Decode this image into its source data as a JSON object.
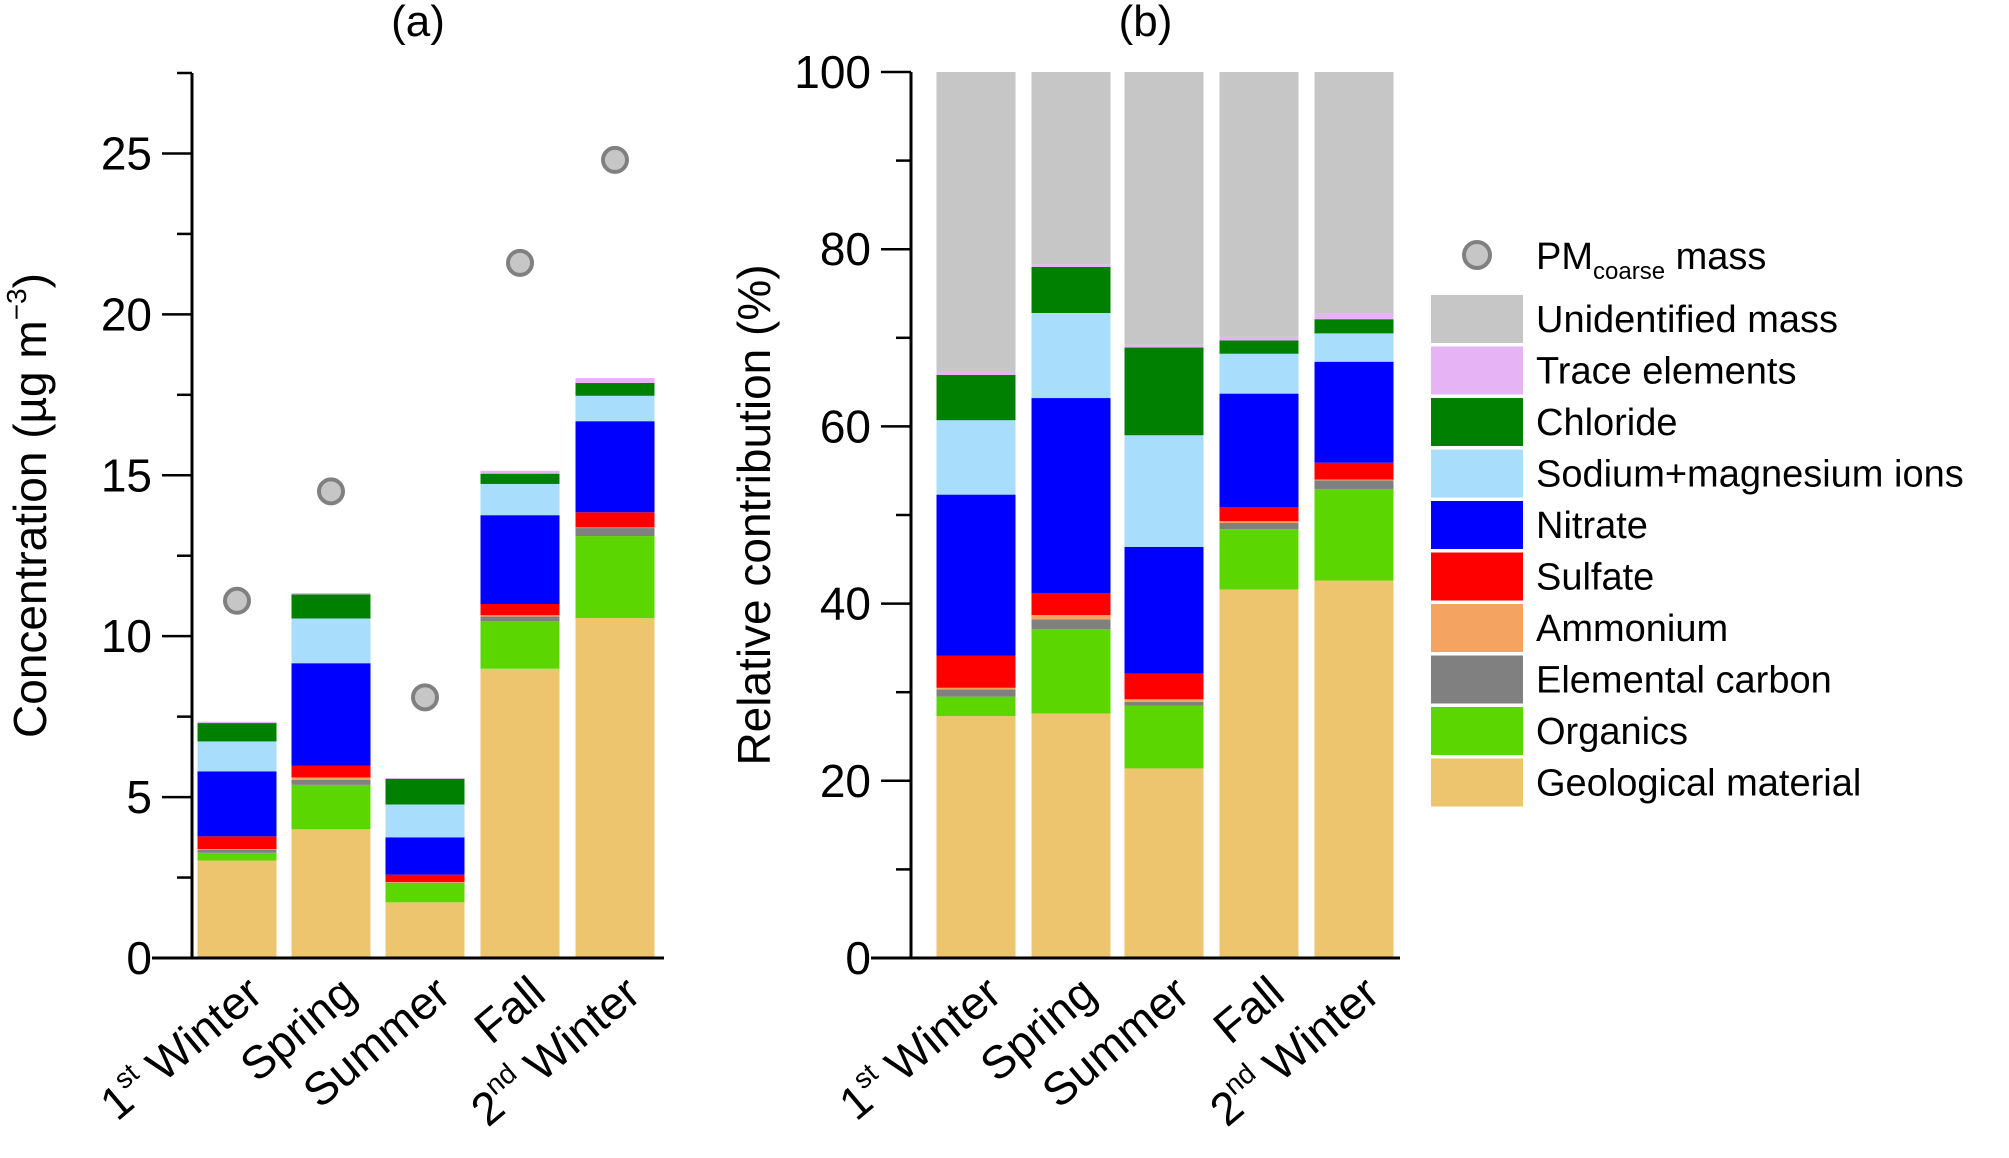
{
  "chart_data": [
    {
      "type": "bar",
      "stacked": true,
      "title": "(a)",
      "ylabel": "Concentration (µg m⁻³)",
      "ylabel_parts": {
        "main": "Concentration (µg m",
        "sup": "−3",
        "end": ")"
      },
      "ylim": [
        0,
        27.5
      ],
      "yticks": [
        0,
        5,
        10,
        15,
        20,
        25
      ],
      "categories": [
        {
          "base": "1",
          "sup": "st",
          "rest": " Winter"
        },
        {
          "base": "Spring",
          "sup": "",
          "rest": ""
        },
        {
          "base": "Summer",
          "sup": "",
          "rest": ""
        },
        {
          "base": "Fall",
          "sup": "",
          "rest": ""
        },
        {
          "base": "2",
          "sup": "nd",
          "rest": " Winter"
        }
      ],
      "series": [
        {
          "name": "Geological material",
          "color": "#EDC56F",
          "values": [
            3.03,
            4.0,
            1.73,
            8.99,
            10.56
          ]
        },
        {
          "name": "Organics",
          "color": "#5CD600",
          "values": [
            0.24,
            1.38,
            0.58,
            1.47,
            2.55
          ]
        },
        {
          "name": "Elemental carbon",
          "color": "#808080",
          "values": [
            0.09,
            0.16,
            0.03,
            0.15,
            0.25
          ]
        },
        {
          "name": "Ammonium",
          "color": "#F4A460",
          "values": [
            0.02,
            0.07,
            0.02,
            0.04,
            0.02
          ]
        },
        {
          "name": "Sulfate",
          "color": "#FF0000",
          "values": [
            0.4,
            0.36,
            0.23,
            0.35,
            0.47
          ]
        },
        {
          "name": "Nitrate",
          "color": "#0000FF",
          "values": [
            2.02,
            3.19,
            1.16,
            2.76,
            2.83
          ]
        },
        {
          "name": "Sodium+magnesium ions",
          "color": "#A8DDFC",
          "values": [
            0.93,
            1.39,
            1.02,
            0.97,
            0.79
          ]
        },
        {
          "name": "Chloride",
          "color": "#008000",
          "values": [
            0.57,
            0.75,
            0.8,
            0.32,
            0.4
          ]
        },
        {
          "name": "Trace elements",
          "color": "#E6B3F5",
          "values": [
            0.04,
            0.04,
            0.02,
            0.09,
            0.15
          ]
        }
      ],
      "points": {
        "name": "PMcoarse mass",
        "values": [
          11.1,
          14.5,
          8.1,
          21.6,
          24.8
        ]
      }
    },
    {
      "type": "bar",
      "stacked": true,
      "title": "(b)",
      "ylabel": "Relative contribution (%)",
      "ylim": [
        0,
        100
      ],
      "yticks": [
        0,
        20,
        40,
        60,
        80,
        100
      ],
      "series": [
        {
          "name": "Geological material",
          "color": "#EDC56F",
          "values": [
            27.3,
            27.6,
            21.4,
            41.6,
            42.6
          ]
        },
        {
          "name": "Organics",
          "color": "#5CD600",
          "values": [
            2.2,
            9.5,
            7.1,
            6.8,
            10.3
          ]
        },
        {
          "name": "Elemental carbon",
          "color": "#808080",
          "values": [
            0.8,
            1.1,
            0.4,
            0.7,
            1.0
          ]
        },
        {
          "name": "Ammonium",
          "color": "#F4A460",
          "values": [
            0.2,
            0.5,
            0.3,
            0.2,
            0.1
          ]
        },
        {
          "name": "Sulfate",
          "color": "#FF0000",
          "values": [
            3.6,
            2.5,
            2.9,
            1.6,
            1.9
          ]
        },
        {
          "name": "Nitrate",
          "color": "#0000FF",
          "values": [
            18.2,
            22.0,
            14.3,
            12.8,
            11.4
          ]
        },
        {
          "name": "Sodium+magnesium ions",
          "color": "#A8DDFC",
          "values": [
            8.4,
            9.6,
            12.6,
            4.5,
            3.2
          ]
        },
        {
          "name": "Chloride",
          "color": "#008000",
          "values": [
            5.1,
            5.2,
            9.9,
            1.5,
            1.6
          ]
        },
        {
          "name": "Trace elements",
          "color": "#E6B3F5",
          "values": [
            0.4,
            0.3,
            0.3,
            0.4,
            0.6
          ]
        },
        {
          "name": "Unidentified mass",
          "color": "#C6C6C6",
          "values": [
            33.8,
            21.7,
            30.8,
            29.9,
            27.3
          ]
        }
      ]
    }
  ],
  "legend": {
    "placement": "right",
    "point_label": {
      "main": "PM",
      "sub": "coarse",
      "rest": " mass"
    },
    "items": [
      "Unidentified mass",
      "Trace elements",
      "Chloride",
      "Sodium+magnesium ions",
      "Nitrate",
      "Sulfate",
      "Ammonium",
      "Elemental carbon",
      "Organics",
      "Geological material"
    ],
    "colors": [
      "#C6C6C6",
      "#E6B3F5",
      "#008000",
      "#A8DDFC",
      "#0000FF",
      "#FF0000",
      "#F4A460",
      "#808080",
      "#5CD600",
      "#EDC56F"
    ]
  }
}
